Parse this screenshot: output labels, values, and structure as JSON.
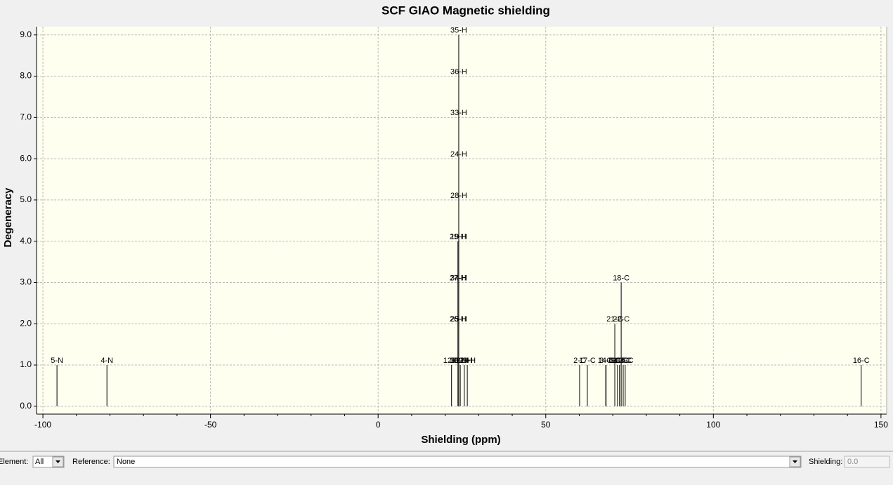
{
  "chart_data": {
    "type": "stick",
    "title": "SCF GIAO Magnetic shielding",
    "xlabel": "Shielding (ppm)",
    "ylabel": "Degeneracy",
    "xlim": [
      -101.9,
      151.7
    ],
    "ylim": [
      -0.19,
      9.2
    ],
    "xticks": [
      -100,
      -50,
      0,
      50,
      100,
      150
    ],
    "xminorticks": [
      -90,
      -80,
      -70,
      -60,
      -40,
      -30,
      -20,
      -10,
      10,
      20,
      30,
      40,
      60,
      70,
      80,
      90,
      110,
      120,
      130,
      140
    ],
    "yticks": [
      {
        "value": 0,
        "label": "0.0"
      },
      {
        "value": 1,
        "label": "1.0"
      },
      {
        "value": 2,
        "label": "2.0"
      },
      {
        "value": 3,
        "label": "3.0"
      },
      {
        "value": 4,
        "label": "4.0"
      },
      {
        "value": 5,
        "label": "5.0"
      },
      {
        "value": 6,
        "label": "6.0"
      },
      {
        "value": 7,
        "label": "7.0"
      },
      {
        "value": 8,
        "label": "8.0"
      },
      {
        "value": 9,
        "label": "9.0"
      }
    ],
    "grid": true,
    "color": "#000000",
    "peaks": [
      {
        "x": -95.8,
        "degeneracy": 1,
        "labels": [
          "5-N"
        ]
      },
      {
        "x": -80.9,
        "degeneracy": 1,
        "labels": [
          "4-N"
        ]
      },
      {
        "x": 21.9,
        "degeneracy": 1,
        "labels": [
          "12-H"
        ]
      },
      {
        "x": 23.8,
        "degeneracy": 4,
        "labels": [
          "30-H",
          "26-H",
          "27-H",
          "29-H"
        ]
      },
      {
        "x": 24.05,
        "degeneracy": 9,
        "labels": [
          "31-H",
          "25-H",
          "34-H",
          "19-H",
          "28-H",
          "24-H",
          "33-H",
          "36-H",
          "35-H"
        ]
      },
      {
        "x": 24.5,
        "degeneracy": 1,
        "labels": [
          "32-H"
        ]
      },
      {
        "x": 25.7,
        "degeneracy": 1,
        "labels": [
          "22-H"
        ]
      },
      {
        "x": 26.6,
        "degeneracy": 1,
        "labels": [
          "23-H"
        ]
      },
      {
        "x": 60.1,
        "degeneracy": 1,
        "labels": [
          "2-C"
        ]
      },
      {
        "x": 62.4,
        "degeneracy": 1,
        "labels": [
          "17-C"
        ]
      },
      {
        "x": 67.9,
        "degeneracy": 1,
        "labels": [
          "3-C"
        ]
      },
      {
        "x": 68.0,
        "degeneracy": 1,
        "labels": [
          "14-C"
        ]
      },
      {
        "x": 70.6,
        "degeneracy": 2,
        "labels": [
          "8-C",
          "21-C"
        ]
      },
      {
        "x": 71.4,
        "degeneracy": 1,
        "labels": [
          "9-C"
        ]
      },
      {
        "x": 72.0,
        "degeneracy": 1,
        "labels": [
          "10-C"
        ]
      },
      {
        "x": 72.5,
        "degeneracy": 3,
        "labels": [
          "11-C",
          "22-C",
          "18-C"
        ]
      },
      {
        "x": 73.1,
        "degeneracy": 1,
        "labels": [
          "13-C"
        ]
      },
      {
        "x": 73.7,
        "degeneracy": 1,
        "labels": [
          "15-C"
        ]
      },
      {
        "x": 144.1,
        "degeneracy": 1,
        "labels": [
          "16-C"
        ]
      }
    ]
  },
  "controls": {
    "element_label": "Element:",
    "element_value": "All",
    "reference_label": "Reference:",
    "reference_value": "None",
    "shielding_label": "Shielding:",
    "shielding_value": "0.0"
  }
}
